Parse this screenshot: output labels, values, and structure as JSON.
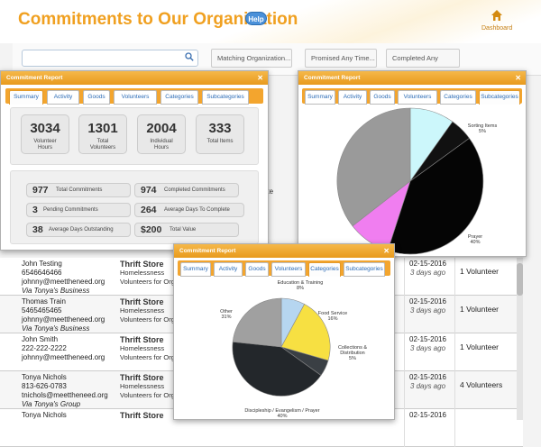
{
  "header": {
    "title": "Commitments to Our Organization",
    "help": "Help",
    "dashboard": "Dashboard"
  },
  "filters": [
    "Matching Organization...",
    "Promised Any Time...",
    "Completed Any Time..."
  ],
  "colors": {
    "accent": "#f0a020",
    "tab_bar": "#f3a52e",
    "link": "#2a6ab5"
  },
  "dialog_title": "Commitment Report",
  "tabs": [
    "Summary",
    "Activity",
    "Goods",
    "Volunteers",
    "Categories",
    "Subcategories"
  ],
  "summary": {
    "stats": [
      {
        "value": "3034",
        "label1": "Volunteer",
        "label2": "Hours"
      },
      {
        "value": "1301",
        "label1": "Total",
        "label2": "Volunteers"
      },
      {
        "value": "2004",
        "label1": "Individual",
        "label2": "Hours"
      },
      {
        "value": "333",
        "label1": "Total Items",
        "label2": ""
      }
    ],
    "pills": [
      {
        "n": "977",
        "t": "Total Commitments"
      },
      {
        "n": "974",
        "t": "Completed Commitments"
      },
      {
        "n": "3",
        "t": "Pending Commitments"
      },
      {
        "n": "264",
        "t": "Average Days To Complete"
      },
      {
        "n": "38",
        "t": "Average Days Outstanding"
      },
      {
        "n": "$200",
        "t": "Total Value"
      }
    ]
  },
  "subcat_chart": {
    "labels": {
      "sorting": "Sorting Items",
      "sorting_pct": "5%",
      "prayer": "Prayer",
      "prayer_pct": "40%"
    }
  },
  "cat_chart": {
    "labels": {
      "edu": "Education & Training",
      "edu_pct": "8%",
      "food": "Food Service",
      "food_pct": "16%",
      "coll": "Collections &",
      "coll2": "Distribution",
      "coll_pct": "5%",
      "disc": "Discipleship / Evangelism / Prayer",
      "disc_pct": "40%",
      "other": "Other",
      "other_pct": "31%"
    }
  },
  "table": {
    "partial_text": "ate",
    "rows": [
      {
        "name": "John Testing",
        "phone": "6546646466",
        "email": "johnny@meettheneed.org",
        "via": "Via Tonya's Business",
        "org": "Thrift Store",
        "sub1": "Homelessness",
        "sub2": "Volunteers for Org",
        "d1": "2016",
        "d2": "02-15-2016",
        "ago": "3 days ago",
        "vol": "1 Volunteer"
      },
      {
        "name": "Thomas Train",
        "phone": "5465465465",
        "email": "johnny@meettheneed.org",
        "via": "Via Tonya's Business",
        "org": "Thrift Store",
        "sub1": "Homelessness",
        "sub2": "Volunteers for Org",
        "d1": "2016",
        "d2": "02-15-2016",
        "ago": "3 days ago",
        "vol": "1 Volunteer"
      },
      {
        "name": "John Smith",
        "phone": "222-222-2222",
        "email": "johnny@meettheneed.org",
        "via": "",
        "org": "Thrift Store",
        "sub1": "Homelessness",
        "sub2": "Volunteers for Org",
        "d1": "2016",
        "d2": "02-15-2016",
        "ago": "3 days ago",
        "vol": "1 Volunteer"
      },
      {
        "name": "Tonya Nichols",
        "phone": "813-626-0783",
        "email": "tnichols@meettheneed.org",
        "via": "Via Tonya's Group",
        "org": "Thrift Store",
        "sub1": "Homelessness",
        "sub2": "Volunteers for Org",
        "d1": "2016",
        "d2": "02-15-2016",
        "ago": "3 days ago",
        "vol": "4 Volunteers"
      },
      {
        "name": "Tonya Nichols",
        "phone": "",
        "email": "",
        "via": "",
        "org": "Thrift Store",
        "sub1": "",
        "sub2": "",
        "d1": "2016",
        "d2": "02-15-2016",
        "ago": "",
        "vol": ""
      }
    ]
  }
}
